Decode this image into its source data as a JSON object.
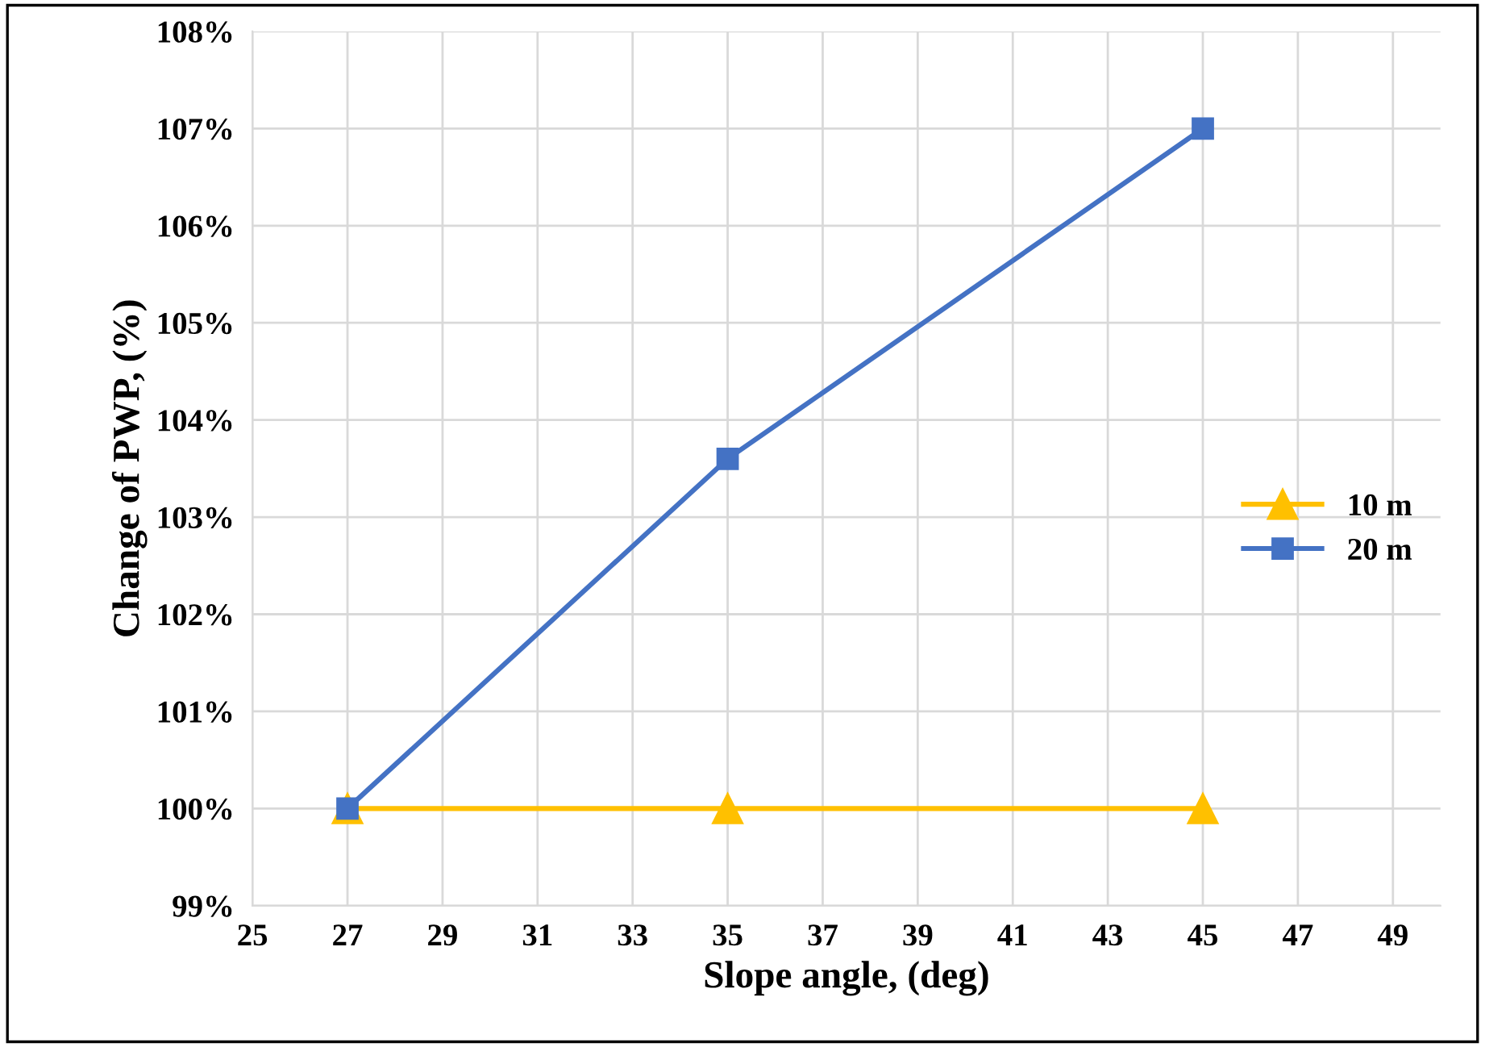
{
  "chart_data": {
    "type": "line",
    "xlabel": "Slope angle, (deg)",
    "ylabel": "Change of PWP, (%)",
    "x": [
      27,
      35,
      45
    ],
    "series": [
      {
        "name": "10 m",
        "color": "#ffc000",
        "values": [
          100,
          100,
          100
        ],
        "marker": "triangle"
      },
      {
        "name": "20 m",
        "color": "#4472c4",
        "values": [
          100,
          103.6,
          107.0
        ],
        "marker": "square"
      }
    ],
    "xlim": [
      25,
      50
    ],
    "xticks": [
      25,
      27,
      29,
      31,
      33,
      35,
      37,
      39,
      41,
      43,
      45,
      47,
      49
    ],
    "ylim": [
      99,
      108
    ],
    "yticks": [
      {
        "value": 99,
        "label": "99%"
      },
      {
        "value": 100,
        "label": "100%"
      },
      {
        "value": 101,
        "label": "101%"
      },
      {
        "value": 102,
        "label": "102%"
      },
      {
        "value": 103,
        "label": "103%"
      },
      {
        "value": 104,
        "label": "104%"
      },
      {
        "value": 105,
        "label": "105%"
      },
      {
        "value": 106,
        "label": "106%"
      },
      {
        "value": 107,
        "label": "107%"
      },
      {
        "value": 108,
        "label": "108%"
      }
    ],
    "grid": true,
    "legend": "right",
    "line_style": "solid"
  }
}
